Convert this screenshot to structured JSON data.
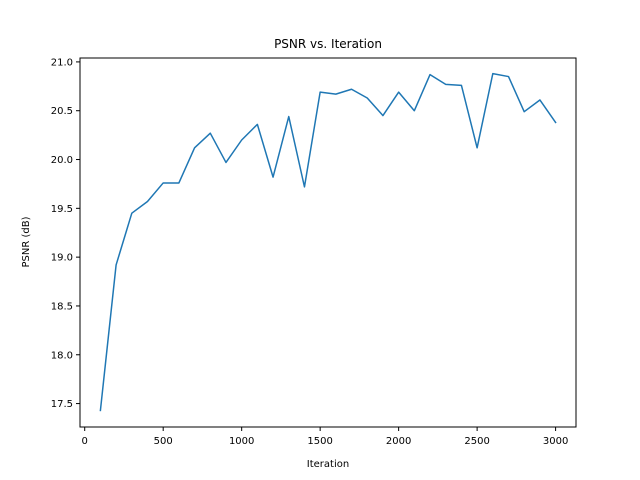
{
  "chart_data": {
    "type": "line",
    "title": "PSNR vs. Iteration",
    "xlabel": "Iteration",
    "ylabel": "PSNR (dB)",
    "xlim": [
      -30,
      3130
    ],
    "ylim": [
      17.26,
      21.04
    ],
    "xticks": [
      0,
      500,
      1000,
      1500,
      2000,
      2500,
      3000
    ],
    "yticks": [
      17.5,
      18.0,
      18.5,
      19.0,
      19.5,
      20.0,
      20.5,
      21.0
    ],
    "xtick_labels": [
      "0",
      "500",
      "1000",
      "1500",
      "2000",
      "2500",
      "3000"
    ],
    "ytick_labels": [
      "17.5",
      "18.0",
      "18.5",
      "19.0",
      "19.5",
      "20.0",
      "20.5",
      "21.0"
    ],
    "grid": false,
    "series": [
      {
        "color": "#1f77b4",
        "x": [
          100,
          200,
          300,
          400,
          500,
          600,
          700,
          800,
          900,
          1000,
          1100,
          1200,
          1300,
          1400,
          1500,
          1600,
          1700,
          1800,
          1900,
          2000,
          2100,
          2200,
          2300,
          2400,
          2500,
          2600,
          2700,
          2800,
          2900,
          3000
        ],
        "y": [
          17.43,
          18.92,
          19.45,
          19.57,
          19.76,
          19.76,
          20.12,
          20.27,
          19.97,
          20.2,
          20.36,
          19.82,
          20.44,
          19.72,
          20.69,
          20.67,
          20.72,
          20.63,
          20.45,
          20.69,
          20.5,
          20.87,
          20.77,
          20.76,
          20.12,
          20.88,
          20.85,
          20.49,
          20.61,
          20.38
        ]
      }
    ]
  }
}
